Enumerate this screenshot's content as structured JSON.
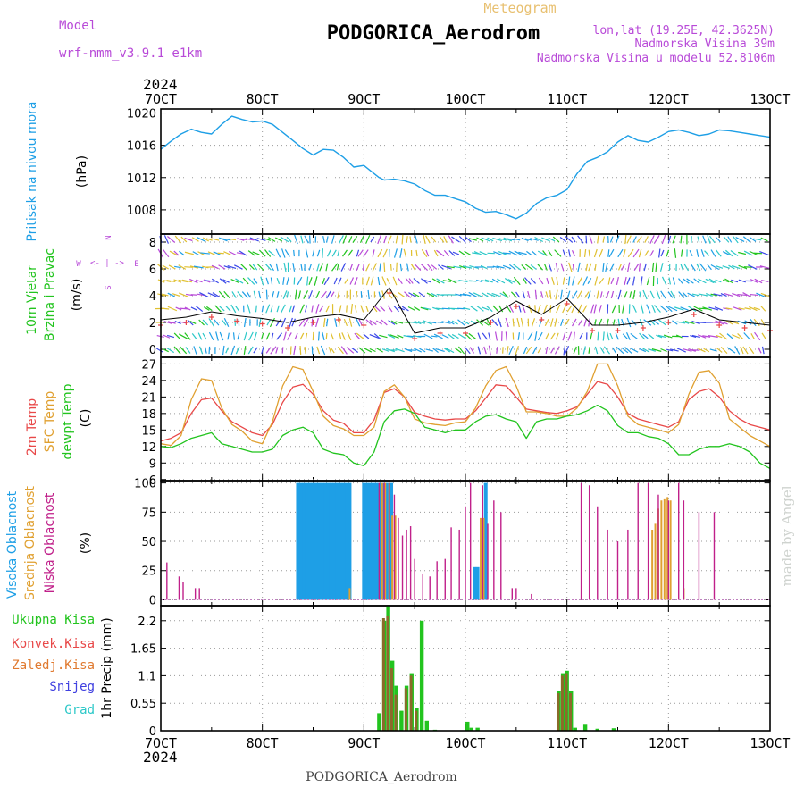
{
  "header": {
    "model_label": "Model",
    "model_name": "wrf-nmm_v3.9.1 e1km",
    "meteogram_label": "Meteogram",
    "station": "PODGORICA_Aerodrom",
    "lonlat": "lon,lat (19.25E, 42.3625N)",
    "elevation": "Nadmorska Visina 39m",
    "model_elevation": "Nadmorska Visina u modelu 52.8106m",
    "footer_station": "PODGORICA_Aerodrom",
    "watermark": "made by Angel"
  },
  "time_axis": {
    "year_top": "2024",
    "year_bottom": "2024",
    "ticks": [
      "7OCT",
      "8OCT",
      "9OCT",
      "10OCT",
      "11OCT",
      "12OCT",
      "13OCT"
    ]
  },
  "colors": {
    "pressure": "#1e9fe6",
    "wind_label": "#22c41e",
    "wind_dir": "#b84ad8",
    "temp2m": "#e84848",
    "sfc_temp": "#e0a030",
    "dewpoint": "#22c41e",
    "high_cloud": "#1e9fe6",
    "mid_cloud": "#e0a030",
    "low_cloud": "#c0208a",
    "total_precip": "#22c41e",
    "conv_precip": "#e84848",
    "frozen_precip": "#e07a30",
    "snow": "#4040e0",
    "graupel": "#2cc8c8"
  },
  "chart_data": [
    {
      "type": "line",
      "name": "pressure",
      "ylabel": "(hPa)",
      "side_labels": [
        "Pritisak na nivou mora"
      ],
      "ylim": [
        1005,
        1020.5
      ],
      "yticks": [
        "1008",
        "1012",
        "1016",
        "1020"
      ],
      "x_days": [
        0,
        0.1,
        0.2,
        0.3,
        0.35,
        0.4,
        0.5,
        0.6,
        0.7,
        0.8,
        0.9,
        1.0,
        1.1,
        1.2,
        1.3,
        1.4,
        1.5,
        1.6,
        1.7,
        1.8,
        1.9,
        2.0,
        2.1,
        2.15,
        2.2,
        2.3,
        2.4,
        2.5,
        2.6,
        2.7,
        2.8,
        2.9,
        3.0,
        3.1,
        3.2,
        3.3,
        3.4,
        3.5,
        3.6,
        3.7,
        3.8,
        3.9,
        4.0,
        4.1,
        4.2,
        4.3,
        4.4,
        4.5,
        4.6,
        4.7,
        4.8,
        4.9,
        5.0,
        5.1,
        5.2,
        5.3,
        5.4,
        5.5,
        5.6,
        5.7,
        5.8,
        5.9,
        6.0
      ],
      "values": [
        1015.5,
        1016.5,
        1017.4,
        1018.0,
        1017.8,
        1017.6,
        1017.4,
        1018.6,
        1019.6,
        1019.2,
        1018.9,
        1019.0,
        1018.6,
        1017.6,
        1016.6,
        1015.6,
        1014.8,
        1015.5,
        1015.4,
        1014.5,
        1013.3,
        1013.5,
        1012.5,
        1012.0,
        1011.7,
        1011.8,
        1011.6,
        1011.2,
        1010.4,
        1009.8,
        1009.8,
        1009.4,
        1009.0,
        1008.2,
        1007.7,
        1007.8,
        1007.4,
        1006.9,
        1007.6,
        1008.8,
        1009.5,
        1009.8,
        1010.5,
        1012.5,
        1014.0,
        1014.5,
        1015.2,
        1016.4,
        1017.2,
        1016.6,
        1016.4,
        1017.0,
        1017.7,
        1017.9,
        1017.6,
        1017.2,
        1017.4,
        1017.9,
        1017.8,
        1017.6,
        1017.4,
        1017.2,
        1017.0
      ]
    },
    {
      "type": "line",
      "name": "wind",
      "ylabel": "(m/s)",
      "side_labels": [
        "10m Vjetar",
        "Brzina i Pravac"
      ],
      "compass": {
        "n": "N",
        "s": "S",
        "w": "W",
        "e": "E"
      },
      "ylim": [
        -0.6,
        8.6
      ],
      "yticks": [
        "0",
        "2",
        "4",
        "6",
        "8"
      ],
      "x_days": [
        0,
        0.25,
        0.5,
        0.75,
        1.0,
        1.25,
        1.5,
        1.75,
        2.0,
        2.25,
        2.5,
        2.75,
        3.0,
        3.25,
        3.5,
        3.75,
        4.0,
        4.25,
        4.5,
        4.75,
        5.0,
        5.25,
        5.5,
        5.75,
        6.0
      ],
      "values": [
        2.2,
        2.4,
        2.8,
        2.5,
        2.3,
        2.0,
        2.4,
        2.6,
        2.2,
        4.6,
        1.2,
        1.6,
        1.6,
        2.4,
        3.6,
        2.6,
        3.8,
        1.8,
        1.8,
        2.0,
        2.4,
        3.0,
        2.2,
        2.0,
        1.8
      ]
    },
    {
      "type": "line",
      "name": "temperature",
      "ylabel": "(C)",
      "side_labels": [
        "2m Temp",
        "SFC Temp",
        "dewpt Temp"
      ],
      "ylim": [
        5.8,
        28.2
      ],
      "yticks": [
        "6",
        "9",
        "12",
        "15",
        "18",
        "21",
        "24",
        "27"
      ],
      "x_days": [
        0,
        0.1,
        0.2,
        0.3,
        0.4,
        0.5,
        0.6,
        0.7,
        0.8,
        0.9,
        1.0,
        1.1,
        1.2,
        1.3,
        1.4,
        1.5,
        1.6,
        1.7,
        1.8,
        1.9,
        2.0,
        2.1,
        2.2,
        2.3,
        2.4,
        2.5,
        2.6,
        2.7,
        2.8,
        2.9,
        3.0,
        3.1,
        3.2,
        3.3,
        3.4,
        3.5,
        3.6,
        3.7,
        3.8,
        3.9,
        4.0,
        4.1,
        4.2,
        4.3,
        4.4,
        4.5,
        4.6,
        4.7,
        4.8,
        4.9,
        5.0,
        5.1,
        5.2,
        5.3,
        5.4,
        5.5,
        5.6,
        5.7,
        5.8,
        5.9,
        6.0
      ],
      "series": [
        {
          "name": "2m Temp",
          "values": [
            13,
            13.5,
            14.5,
            18,
            20.5,
            20.8,
            18.5,
            16.5,
            15.5,
            14.5,
            14,
            16,
            20,
            22.8,
            23.3,
            21.5,
            18.5,
            16.8,
            16.2,
            14.5,
            14.5,
            16.8,
            21.8,
            22.5,
            21,
            18.2,
            17.5,
            17,
            16.8,
            17,
            17,
            18.5,
            20.8,
            23.2,
            23,
            21,
            18.8,
            18.5,
            18.2,
            18,
            18.5,
            19.2,
            21.5,
            23.8,
            23.3,
            21,
            18,
            17,
            16.5,
            16,
            15.5,
            16.5,
            20.5,
            22,
            22.5,
            21,
            18.5,
            17,
            16,
            15.5,
            15
          ]
        },
        {
          "name": "SFC Temp",
          "values": [
            12.5,
            12.2,
            14,
            20.5,
            24.3,
            24,
            19,
            16,
            14.8,
            13,
            12.5,
            16.5,
            23,
            26.5,
            26,
            22,
            17.5,
            15.8,
            15.2,
            14,
            14,
            15.5,
            22,
            23.2,
            21,
            17,
            16.3,
            16,
            15.8,
            16.3,
            16.5,
            19,
            23,
            25.8,
            26.5,
            23,
            18.3,
            18.3,
            18,
            17.5,
            17.5,
            19,
            22,
            27,
            27,
            23,
            17.5,
            16,
            15.5,
            15,
            14.5,
            16,
            21.5,
            25.5,
            25.8,
            23.5,
            17,
            15.5,
            14,
            13,
            12
          ]
        },
        {
          "name": "dewpt Temp",
          "values": [
            12,
            11.8,
            12.5,
            13.5,
            14,
            14.5,
            12.5,
            12,
            11.5,
            11,
            11,
            11.5,
            14,
            15,
            15.5,
            14.5,
            11.5,
            10.8,
            10.5,
            9,
            8.5,
            11,
            16.5,
            18.5,
            18.8,
            18,
            15.5,
            15,
            14.5,
            15,
            15,
            16.5,
            17.5,
            17.8,
            17,
            16.5,
            13.5,
            16.5,
            17,
            17,
            17.5,
            17.8,
            18.5,
            19.5,
            18.5,
            15.8,
            14.5,
            14.5,
            13.8,
            13.5,
            12.5,
            10.5,
            10.5,
            11.5,
            12,
            12,
            12.5,
            12,
            11,
            9,
            8
          ]
        }
      ]
    },
    {
      "type": "bar",
      "name": "clouds",
      "ylabel": "(%)",
      "side_labels": [
        "Visoka Oblacnost",
        "Srednja Oblacnost",
        "Niska Oblacnost"
      ],
      "ylim": [
        -5,
        102
      ],
      "yticks": [
        "0",
        "25",
        "50",
        "75",
        "100"
      ],
      "series": [
        {
          "name": "Visoka Oblacnost",
          "x_days": [
            1.35,
            1.38,
            1.41,
            1.44,
            1.47,
            1.5,
            1.53,
            1.56,
            1.59,
            1.62,
            1.65,
            1.68,
            1.71,
            1.74,
            1.77,
            1.8,
            1.83,
            1.86,
            2.0,
            2.03,
            2.06,
            2.09,
            2.12,
            2.15,
            2.18,
            2.21,
            2.24,
            2.27,
            3.09,
            3.12,
            3.2
          ],
          "values": [
            100,
            100,
            100,
            100,
            100,
            100,
            100,
            100,
            100,
            100,
            100,
            100,
            100,
            100,
            100,
            100,
            100,
            100,
            100,
            100,
            100,
            100,
            100,
            100,
            100,
            100,
            100,
            100,
            28,
            28,
            100
          ]
        },
        {
          "name": "Srednja Oblacnost",
          "x_days": [
            1.86,
            2.18,
            2.21,
            2.25,
            2.28,
            2.31,
            3.15,
            3.18,
            4.84,
            4.87,
            4.9,
            4.93,
            4.96,
            4.99,
            5.02,
            5.15
          ],
          "values": [
            10,
            100,
            100,
            100,
            72,
            72,
            70,
            70,
            60,
            65,
            78,
            85,
            86,
            88,
            85,
            10
          ]
        },
        {
          "name": "Niska Oblacnost",
          "x_days": [
            0.06,
            0.18,
            0.22,
            0.34,
            0.38,
            2.15,
            2.2,
            2.25,
            2.3,
            2.34,
            2.38,
            2.42,
            2.46,
            2.5,
            2.58,
            2.65,
            2.72,
            2.8,
            2.86,
            2.94,
            3.0,
            3.05,
            3.17,
            3.22,
            3.28,
            3.35,
            3.46,
            3.5,
            3.65,
            4.14,
            4.22,
            4.3,
            4.4,
            4.5,
            4.6,
            4.7,
            4.8,
            4.9,
            5.0,
            5.1,
            5.15,
            5.3,
            5.45
          ],
          "values": [
            32,
            20,
            15,
            10,
            10,
            100,
            100,
            100,
            90,
            70,
            55,
            60,
            63,
            35,
            22,
            20,
            33,
            35,
            62,
            60,
            80,
            100,
            98,
            65,
            85,
            75,
            10,
            10,
            5,
            100,
            98,
            80,
            60,
            50,
            60,
            100,
            100,
            90,
            85,
            100,
            85,
            75,
            75
          ]
        }
      ]
    },
    {
      "type": "bar",
      "name": "precip",
      "ylabel": "1hr Precip (mm)",
      "side_labels": [
        "Ukupna Kisa",
        "Konvek.Kisa",
        "Zaledj.Kisa",
        "Snijeg",
        "Grad"
      ],
      "ylim": [
        0,
        2.5
      ],
      "yticks": [
        "0",
        "0.55",
        "1.1",
        "1.65",
        "2.2"
      ],
      "series": [
        {
          "name": "Ukupna Kisa",
          "x_days": [
            2.15,
            2.2,
            2.24,
            2.28,
            2.32,
            2.37,
            2.42,
            2.47,
            2.52,
            2.57,
            2.62,
            2.7,
            3.02,
            3.06,
            3.12,
            3.92,
            3.96,
            4.0,
            4.04,
            4.08,
            4.18,
            4.3,
            4.46
          ],
          "values": [
            0.35,
            2.2,
            2.5,
            1.4,
            0.9,
            0.4,
            0.9,
            1.15,
            0.45,
            2.2,
            0.2,
            0.02,
            0.18,
            0.06,
            0.06,
            0.8,
            1.15,
            1.2,
            0.8,
            0.06,
            0.12,
            0.04,
            0.05
          ]
        },
        {
          "name": "Zaledj.Kisa",
          "x_days": [
            2.2,
            2.24,
            2.28,
            2.32,
            2.42,
            2.47,
            2.52,
            3.92,
            3.96,
            4.0,
            4.04
          ],
          "values": [
            2.25,
            2.3,
            1.25,
            0.72,
            0.85,
            1.1,
            0.4,
            0.75,
            1.1,
            1.15,
            0.75
          ]
        }
      ]
    }
  ]
}
